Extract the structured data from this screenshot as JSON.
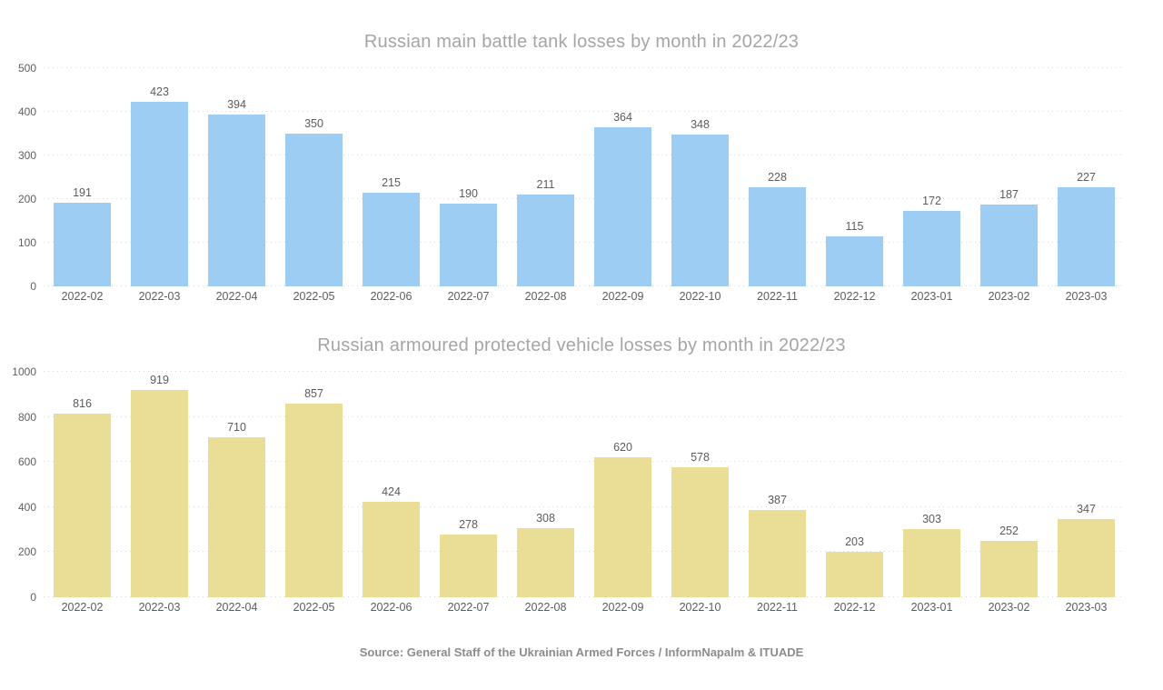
{
  "page": {
    "background_color": "#ffffff"
  },
  "colors": {
    "title_text": "#a5a5a5",
    "axis_text": "#5f5f5f",
    "data_label_text": "#5c5c5c",
    "gridline": "#d9d9d9",
    "source_text": "#8c8c8c",
    "tank_bar": "#9dcdf2",
    "vehicle_bar": "#eade97"
  },
  "source_note": "Source: General Staff of the Ukrainian Armed Forces / InformNapalm & ITUADE",
  "chart_data": [
    {
      "type": "bar",
      "title": "Russian main battle tank losses by month in 2022/23",
      "categories": [
        "2022-02",
        "2022-03",
        "2022-04",
        "2022-05",
        "2022-06",
        "2022-07",
        "2022-08",
        "2022-09",
        "2022-10",
        "2022-11",
        "2022-12",
        "2023-01",
        "2023-02",
        "2023-03"
      ],
      "values": [
        191,
        423,
        394,
        350,
        215,
        190,
        211,
        364,
        348,
        228,
        115,
        172,
        187,
        227
      ],
      "xlabel": "",
      "ylabel": "",
      "ylim": [
        0,
        500
      ],
      "yticks": [
        0,
        100,
        200,
        300,
        400,
        500
      ],
      "grid": true,
      "gridline_style": "dotted",
      "data_labels": true,
      "legend": "none",
      "bar_color": "#9dcdf2"
    },
    {
      "type": "bar",
      "title": "Russian armoured protected vehicle losses by month in 2022/23",
      "categories": [
        "2022-02",
        "2022-03",
        "2022-04",
        "2022-05",
        "2022-06",
        "2022-07",
        "2022-08",
        "2022-09",
        "2022-10",
        "2022-11",
        "2022-12",
        "2023-01",
        "2023-02",
        "2023-03"
      ],
      "values": [
        816,
        919,
        710,
        857,
        424,
        278,
        308,
        620,
        578,
        387,
        203,
        303,
        252,
        347
      ],
      "xlabel": "",
      "ylabel": "",
      "ylim": [
        0,
        1000
      ],
      "yticks": [
        0,
        200,
        400,
        600,
        800,
        1000
      ],
      "grid": true,
      "gridline_style": "dotted",
      "data_labels": true,
      "legend": "none",
      "bar_color": "#eade97"
    }
  ]
}
